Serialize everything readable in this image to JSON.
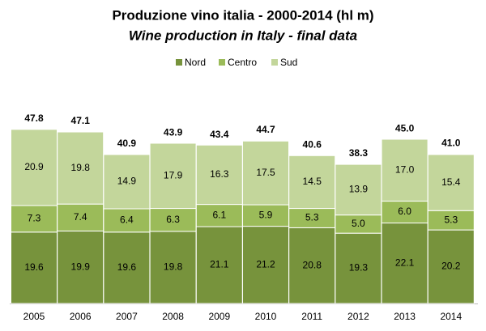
{
  "chart_data": {
    "type": "stacked-bar",
    "title": "Produzione vino italia - 2000-2014 (hl m)",
    "subtitle": "Wine production in Italy - final data",
    "categories": [
      "2005",
      "2006",
      "2007",
      "2008",
      "2009",
      "2010",
      "2011",
      "2012",
      "2013",
      "2014"
    ],
    "series": [
      {
        "name": "Nord",
        "color": "#77933c",
        "values": [
          19.6,
          19.9,
          19.6,
          19.8,
          21.1,
          21.2,
          20.8,
          19.3,
          22.1,
          20.2
        ],
        "value_labels": [
          "19.6",
          "19.9",
          "19.6",
          "19.8",
          "21.1",
          "21.2",
          "20.8",
          "19.3",
          "22.1",
          "20.2"
        ]
      },
      {
        "name": "Centro",
        "color": "#9bbb59",
        "values": [
          7.3,
          7.4,
          6.4,
          6.3,
          6.1,
          5.9,
          5.3,
          5,
          6,
          5.3
        ],
        "value_labels": [
          "7.3",
          "7.4",
          "6.4",
          "6.3",
          "6.1",
          "5.9",
          "5.3",
          "5.0",
          "6.0",
          "5.3"
        ]
      },
      {
        "name": "Sud",
        "color": "#c3d69b",
        "values": [
          20.9,
          19.8,
          14.9,
          17.9,
          16.3,
          17.5,
          14.5,
          13.9,
          17,
          15.4
        ],
        "value_labels": [
          "20.9",
          "19.8",
          "14.9",
          "17.9",
          "16.3",
          "17.5",
          "14.5",
          "13.9",
          "17.0",
          "15.4"
        ]
      }
    ],
    "totals": {
      "values": [
        47.8,
        47.1,
        40.9,
        43.9,
        43.4,
        44.7,
        40.6,
        38.3,
        45,
        41
      ],
      "value_labels": [
        "47.8",
        "47.1",
        "40.9",
        "43.9",
        "43.4",
        "44.7",
        "40.6",
        "38.3",
        "45.0",
        "41.0"
      ]
    }
  }
}
